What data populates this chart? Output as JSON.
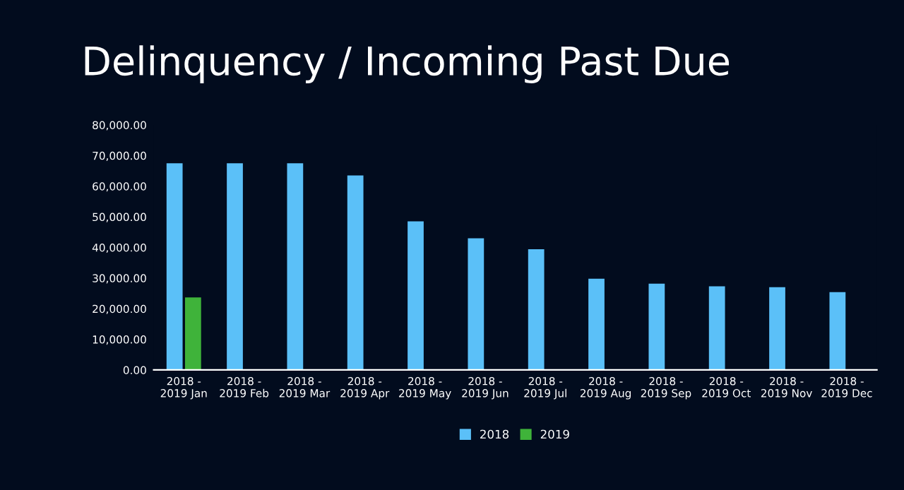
{
  "chart_data": {
    "type": "bar",
    "title": "Delinquency / Incoming Past Due",
    "categories": [
      "2018 -\n2019 Jan",
      "2018 -\n2019 Feb",
      "2018 -\n2019 Mar",
      "2018 -\n2019 Apr",
      "2018 -\n2019 May",
      "2018 -\n2019 Jun",
      "2018 -\n2019 Jul",
      "2018 -\n2019 Aug",
      "2018 -\n2019 Sep",
      "2018 -\n2019 Oct",
      "2018 -\n2019 Nov",
      "2018 -\n2019 Dec"
    ],
    "series": [
      {
        "name": "2018",
        "color": "#5bc0f8",
        "values": [
          67500,
          67500,
          67500,
          63500,
          48500,
          43000,
          39400,
          29800,
          28200,
          27300,
          27000,
          25400
        ]
      },
      {
        "name": "2019",
        "color": "#3fb33a",
        "values": [
          23700,
          null,
          null,
          null,
          null,
          null,
          null,
          null,
          null,
          null,
          null,
          null
        ]
      }
    ],
    "ylim": [
      0,
      80000
    ],
    "yticks": [
      {
        "value": 0,
        "label": "0.00"
      },
      {
        "value": 10000,
        "label": "10,000.00"
      },
      {
        "value": 20000,
        "label": "20,000.00"
      },
      {
        "value": 30000,
        "label": "30,000.00"
      },
      {
        "value": 40000,
        "label": "40,000.00"
      },
      {
        "value": 50000,
        "label": "50,000.00"
      },
      {
        "value": 60000,
        "label": "60,000.00"
      },
      {
        "value": 70000,
        "label": "70,000.00"
      },
      {
        "value": 80000,
        "label": "80,000.00"
      }
    ],
    "grid": false,
    "legend": "bottom"
  }
}
